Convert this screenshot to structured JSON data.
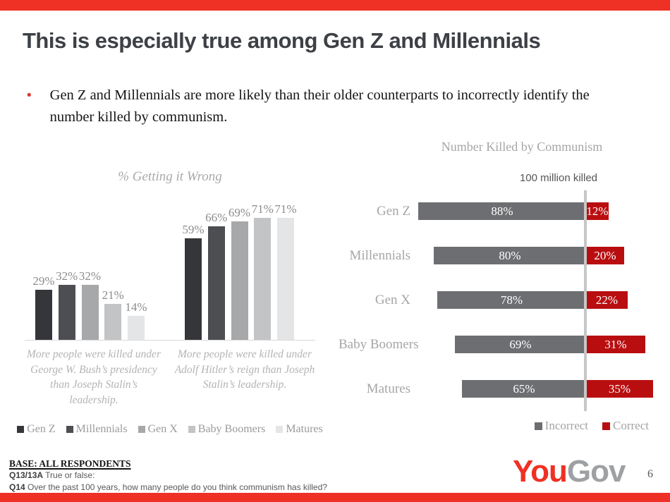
{
  "slide": {
    "title": "This is especially true among Gen Z and Millennials",
    "bullet": "Gen Z and Millennials are more likely than their older counterparts to incorrectly identify the number killed by communism.",
    "page_number": "6"
  },
  "logo": {
    "part1": "You",
    "part2": "Gov"
  },
  "footer": {
    "base": "BASE: ALL RESPONDENTS",
    "q13_label": "Q13/13A",
    "q13_text": "True or false:",
    "q14_label": "Q14",
    "q14_text": "Over the past 100 years, how many people do you think communism has killed?"
  },
  "colors": {
    "accent_red": "#ee3124",
    "logo_gray": "#9da1a4",
    "incorrect_gray": "#6d6e71",
    "correct_red": "#b90e10",
    "series_grays": [
      "#35363a",
      "#4d4e52",
      "#a7a8aa",
      "#c3c4c6",
      "#e4e5e7"
    ]
  },
  "chart_data": [
    {
      "type": "bar",
      "title": "% Getting it Wrong",
      "unit": "%",
      "series_labels": [
        "Gen Z",
        "Millennials",
        "Gen X",
        "Baby Boomers",
        "Matures"
      ],
      "series_colors": [
        "#35363a",
        "#4d4e52",
        "#a7a8aa",
        "#c3c4c6",
        "#e4e5e7"
      ],
      "ylim": [
        0,
        100
      ],
      "grid": false,
      "legend_position": "bottom",
      "groups": [
        {
          "caption": "More people were killed under George W. Bush’s presidency than Joseph Stalin’s leadership.",
          "values": [
            29,
            32,
            32,
            21,
            14
          ]
        },
        {
          "caption": "More people were killed under Adolf Hitler’s reign than Joseph Stalin’s leadership.",
          "values": [
            59,
            66,
            69,
            71,
            71
          ]
        }
      ]
    },
    {
      "type": "bar",
      "orientation": "horizontal-stacked",
      "title": "Number Killed by Communism",
      "annotation": "100 million killed",
      "unit": "%",
      "categories": [
        "Gen Z",
        "Millennials",
        "Gen X",
        "Baby Boomers",
        "Matures"
      ],
      "series": [
        {
          "name": "Incorrect",
          "color": "#6d6e71",
          "values": [
            88,
            80,
            78,
            69,
            65
          ]
        },
        {
          "name": "Correct",
          "color": "#b90e10",
          "values": [
            12,
            20,
            22,
            31,
            35
          ]
        }
      ],
      "xlim": [
        0,
        100
      ],
      "legend_position": "bottom-right"
    }
  ]
}
